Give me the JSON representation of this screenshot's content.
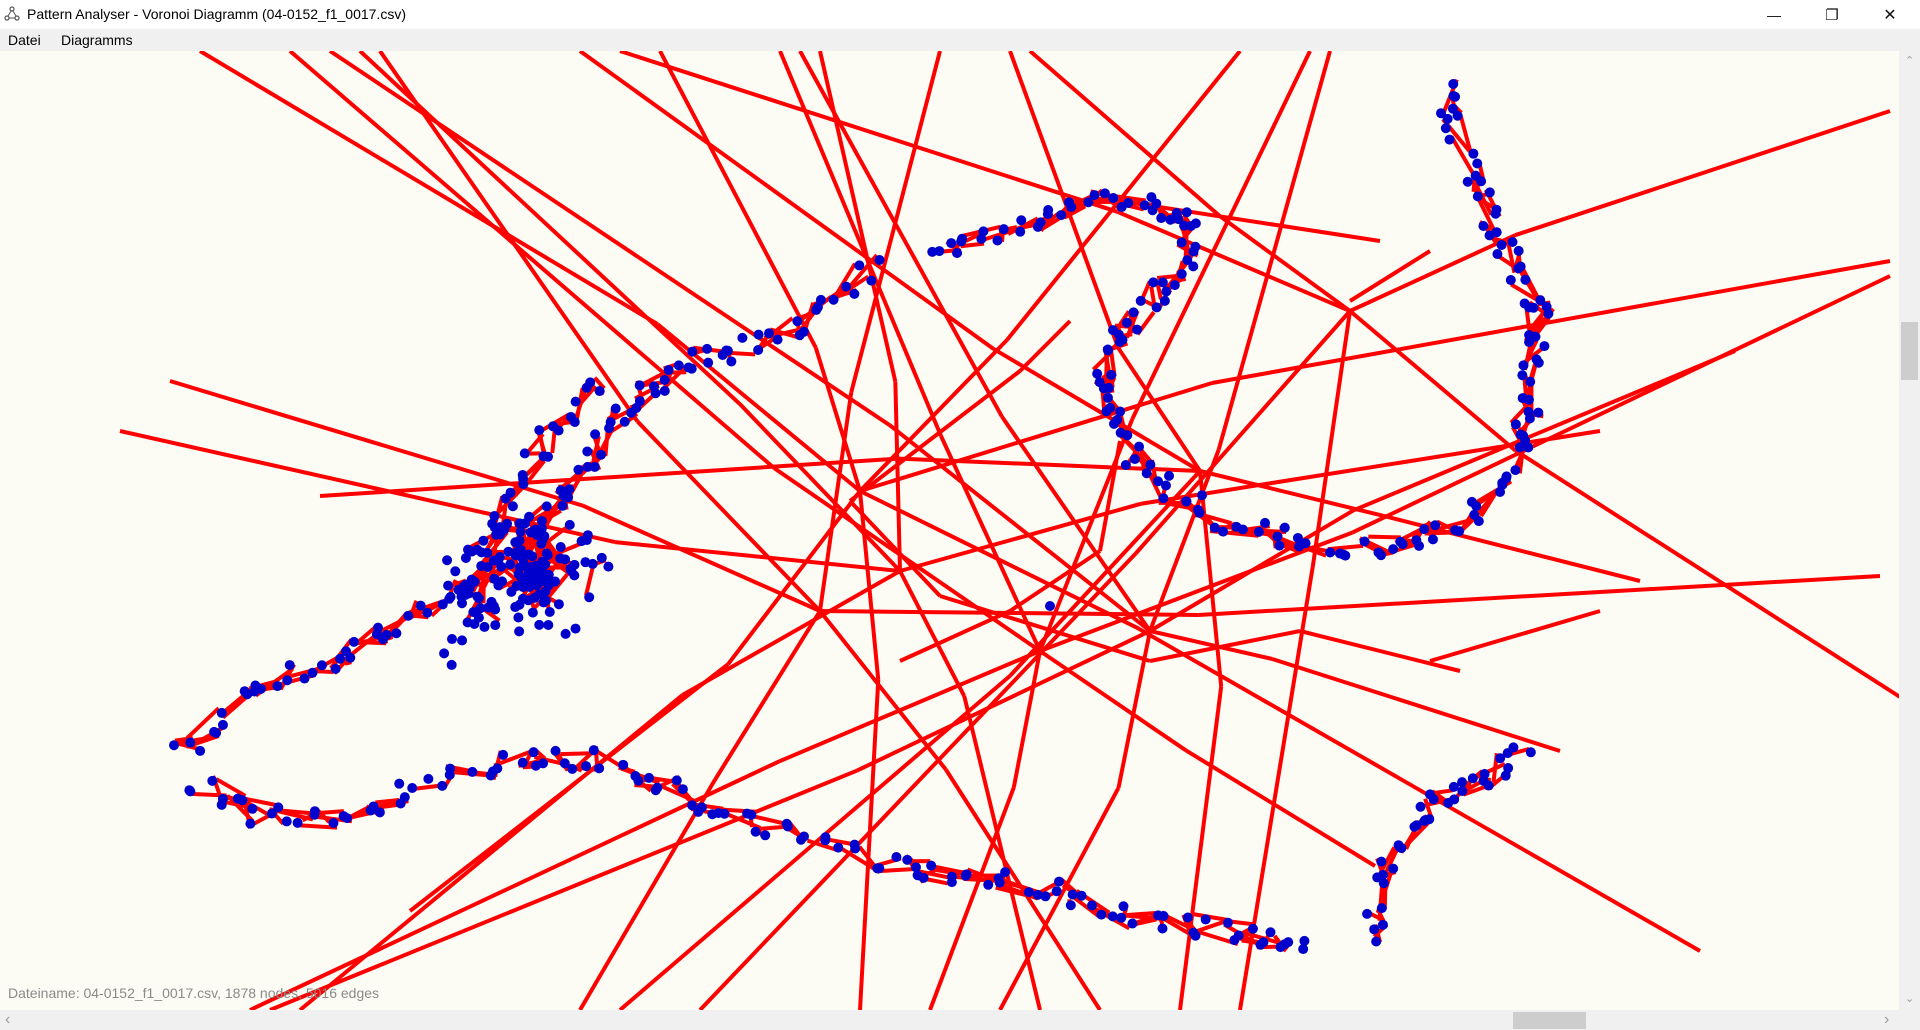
{
  "window": {
    "title": "Pattern Analyser - Voronoi Diagramm (04-0152_f1_0017.csv)",
    "app_icon": "network-icon",
    "controls": {
      "minimize": "—",
      "restore": "❐",
      "close": "✕"
    }
  },
  "menu": {
    "items": [
      {
        "label": "Datei"
      },
      {
        "label": "Diagramms"
      }
    ]
  },
  "diagram": {
    "edge_color": "#ff0000",
    "node_color": "#0000cc",
    "background": "#fdfcf4"
  },
  "status": {
    "text": "Dateiname: 04-0152_f1_0017.csv, 1878 nodes, 5016 edges"
  },
  "scrollbars": {
    "up_arrow": "⌃",
    "down_arrow": "⌄",
    "left_arrow": "‹",
    "right_arrow": "›"
  }
}
